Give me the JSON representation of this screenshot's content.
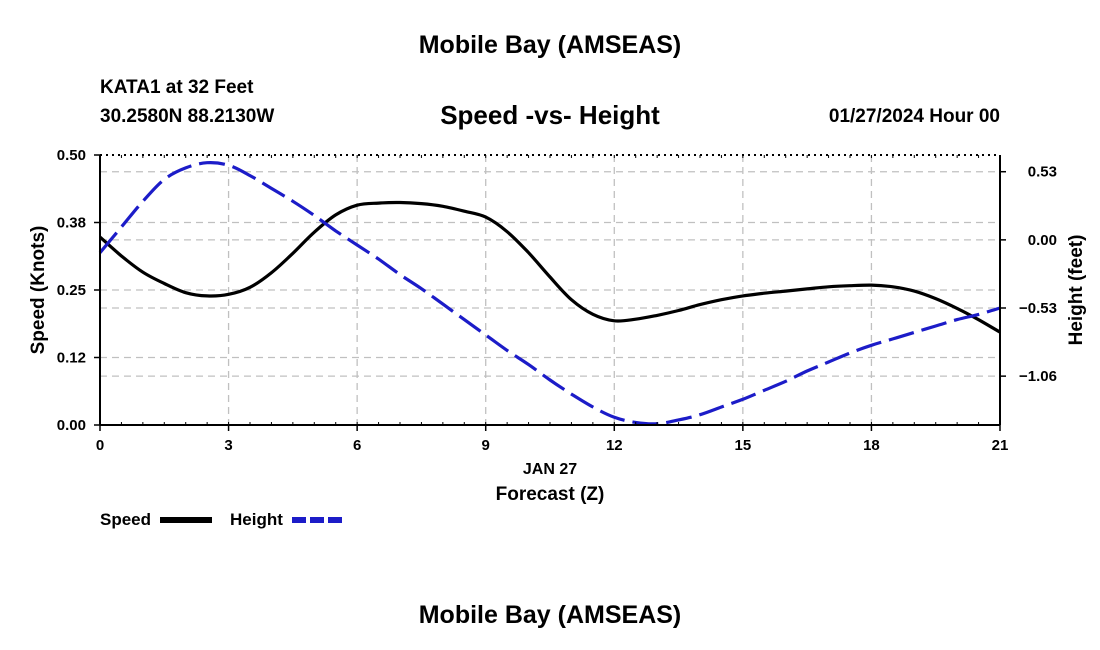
{
  "header": {
    "title": "Mobile Bay (AMSEAS)",
    "station": "KATA1 at 32 Feet",
    "coordinates": "30.2580N  88.2130W",
    "subtitle": "Speed -vs- Height",
    "datetime": "01/27/2024 Hour 00"
  },
  "footer": {
    "title": "Mobile Bay (AMSEAS)"
  },
  "chart_data": {
    "type": "line",
    "title": "Speed -vs- Height",
    "xlabel": "Forecast (Z)",
    "xlabel_date": "JAN 27",
    "ylabel": "Speed (Knots)",
    "y2label": "Height (feet)",
    "xlim": [
      0,
      21
    ],
    "ylim": [
      0,
      0.5
    ],
    "y2lim": [
      -1.44,
      0.66
    ],
    "x_ticks": [
      0,
      3,
      6,
      9,
      12,
      15,
      18,
      21
    ],
    "x_tick_labels": [
      "0",
      "3",
      "6",
      "9",
      "12",
      "15",
      "18",
      "21"
    ],
    "y_ticks": [
      0,
      0.125,
      0.25,
      0.375,
      0.5
    ],
    "y_tick_labels": [
      "0.00",
      "0.12",
      "0.25",
      "0.38",
      "0.50"
    ],
    "y2_ticks": [
      0.53,
      0.0,
      -0.53,
      -1.06
    ],
    "y2_tick_labels": [
      "0.53",
      "0.00",
      "−0.53",
      "−1.06"
    ],
    "grid": true,
    "series": [
      {
        "name": "Speed",
        "axis": "left",
        "color": "#000000",
        "dash": "solid",
        "x": [
          0,
          0.5,
          1,
          1.5,
          2,
          2.5,
          3,
          3.5,
          4,
          4.5,
          5,
          5.5,
          6,
          6.5,
          7,
          7.5,
          8,
          8.5,
          9,
          9.5,
          10,
          10.5,
          11,
          11.5,
          12,
          12.5,
          13,
          13.5,
          14,
          14.5,
          15,
          15.5,
          16,
          16.5,
          17,
          17.5,
          18,
          18.5,
          19,
          19.5,
          20,
          20.5,
          21
        ],
        "values": [
          0.348,
          0.313,
          0.283,
          0.262,
          0.245,
          0.239,
          0.242,
          0.255,
          0.282,
          0.318,
          0.357,
          0.389,
          0.407,
          0.411,
          0.412,
          0.41,
          0.405,
          0.396,
          0.385,
          0.358,
          0.319,
          0.274,
          0.232,
          0.205,
          0.193,
          0.196,
          0.203,
          0.212,
          0.223,
          0.232,
          0.239,
          0.244,
          0.248,
          0.252,
          0.256,
          0.258,
          0.259,
          0.256,
          0.248,
          0.234,
          0.216,
          0.195,
          0.172
        ]
      },
      {
        "name": "Height",
        "axis": "right",
        "color": "#1c1cc8",
        "dash": "dashed",
        "x": [
          0,
          0.5,
          1,
          1.5,
          2,
          2.5,
          3,
          3.5,
          4,
          4.5,
          5,
          5.5,
          6,
          6.5,
          7,
          7.5,
          8,
          8.5,
          9,
          9.5,
          10,
          10.5,
          11,
          11.5,
          12,
          12.5,
          13,
          13.5,
          14,
          14.5,
          15,
          15.5,
          16,
          16.5,
          17,
          17.5,
          18,
          18.5,
          19,
          19.5,
          20,
          20.5,
          21
        ],
        "values": [
          -0.1,
          0.1,
          0.3,
          0.47,
          0.56,
          0.6,
          0.58,
          0.5,
          0.4,
          0.3,
          0.19,
          0.07,
          -0.04,
          -0.15,
          -0.27,
          -0.38,
          -0.5,
          -0.62,
          -0.74,
          -0.86,
          -0.97,
          -1.09,
          -1.2,
          -1.3,
          -1.38,
          -1.42,
          -1.43,
          -1.4,
          -1.36,
          -1.3,
          -1.24,
          -1.17,
          -1.1,
          -1.02,
          -0.95,
          -0.88,
          -0.82,
          -0.77,
          -0.72,
          -0.67,
          -0.62,
          -0.58,
          -0.53
        ]
      }
    ],
    "legend": {
      "placement": "bottom-left",
      "entries": [
        "Speed",
        "Height"
      ]
    }
  }
}
